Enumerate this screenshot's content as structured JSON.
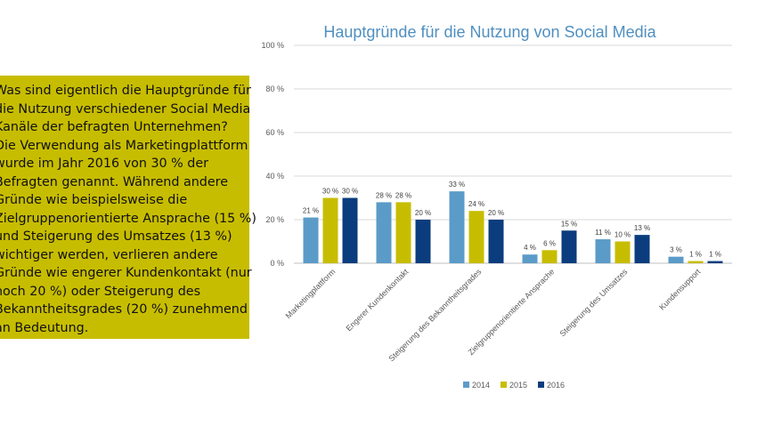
{
  "textbox": {
    "lines": [
      "Was sind eigentlich die Hauptgründe für",
      "die Nutzung verschiedener Social Media",
      "Kanäle der befragten Unternehmen?",
      "Die Verwendung als Marketingplattform",
      "wurde im Jahr 2016 von 30 % der",
      "Befragten genannt. Während andere",
      "Gründe wie beispielsweise die",
      "Zielgruppenorientierte Ansprache (15 %)",
      "und Steigerung des Umsatzes (13 %)",
      "wichtiger werden, verlieren andere",
      "Gründe wie engerer Kundenkontakt (nur",
      "noch 20 %) oder Steigerung des",
      "Bekanntheitsgrades (20 %) zunehmend",
      "an Bedeutung."
    ]
  },
  "chart_data": {
    "type": "bar",
    "title": "Hauptgründe für die Nutzung von Social Media",
    "categories": [
      "Marketingplattform",
      "Engerer Kundenkontakt",
      "Steigerung des Bekanntheitsgrades",
      "Zielgruppenorientierte Ansprache",
      "Steigerung des Umsatzes",
      "Kundensupport"
    ],
    "series": [
      {
        "name": "2014",
        "color": "#5b9bc8",
        "values": [
          21,
          28,
          33,
          4,
          11,
          3
        ]
      },
      {
        "name": "2015",
        "color": "#c7bd00",
        "values": [
          30,
          28,
          24,
          6,
          10,
          1
        ]
      },
      {
        "name": "2016",
        "color": "#0b3d7e",
        "values": [
          30,
          20,
          20,
          15,
          13,
          1
        ]
      }
    ],
    "ylim": [
      0,
      100
    ],
    "yticks": [
      0,
      20,
      40,
      60,
      80,
      100
    ],
    "ytick_labels": [
      "0 %",
      "20 %",
      "40 %",
      "60 %",
      "80 %",
      "100 %"
    ],
    "data_label_suffix": " %",
    "grid": true,
    "legend_position": "bottom"
  }
}
